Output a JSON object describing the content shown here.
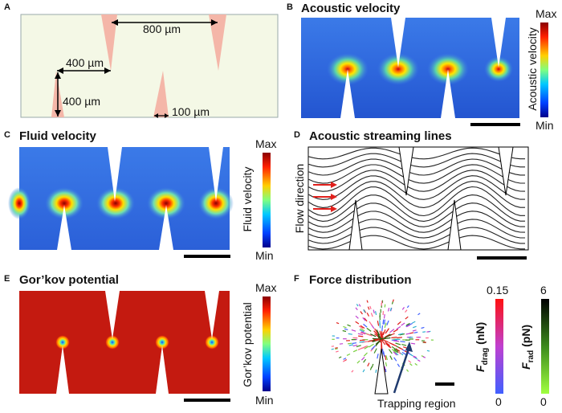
{
  "panels": {
    "A": {
      "letter": "A",
      "dims": {
        "spacing_long": "800 µm",
        "spacing_short": "400 µm",
        "height": "400 µm",
        "tip": "100 µm"
      }
    },
    "B": {
      "letter": "B",
      "title": "Acoustic velocity",
      "cb_max": "Max",
      "cb_min": "Min",
      "cb_label": "Acoustic velocity"
    },
    "C": {
      "letter": "C",
      "title": "Fluid velocity",
      "cb_max": "Max",
      "cb_min": "Min",
      "cb_label": "Fluid velocity"
    },
    "D": {
      "letter": "D",
      "title": "Acoustic streaming lines",
      "side_label": "Flow direction"
    },
    "E": {
      "letter": "E",
      "title": "Gor’kov potential",
      "cb_max": "Max",
      "cb_min": "Min",
      "cb_label": "Gor’kov potential"
    },
    "F": {
      "letter": "F",
      "title": "Force distribution",
      "annotation": "Trapping region",
      "drag_max": "0.15",
      "drag_min": "0",
      "drag_symbol": "F",
      "drag_sub": "drag",
      "drag_unit": " (nN)",
      "rad_max": "6",
      "rad_min": "0",
      "rad_symbol": "F",
      "rad_sub": "rad",
      "rad_unit": " (pN)"
    }
  },
  "colors": {
    "channel_bg": "#f4f8e6",
    "sharp_edge_pink": "#f4b6a8",
    "field_blue": "#2f6fe0",
    "potential_red": "#c41a10",
    "arrow_red": "#e0201c",
    "trap_arrow": "#1f3a6e"
  }
}
